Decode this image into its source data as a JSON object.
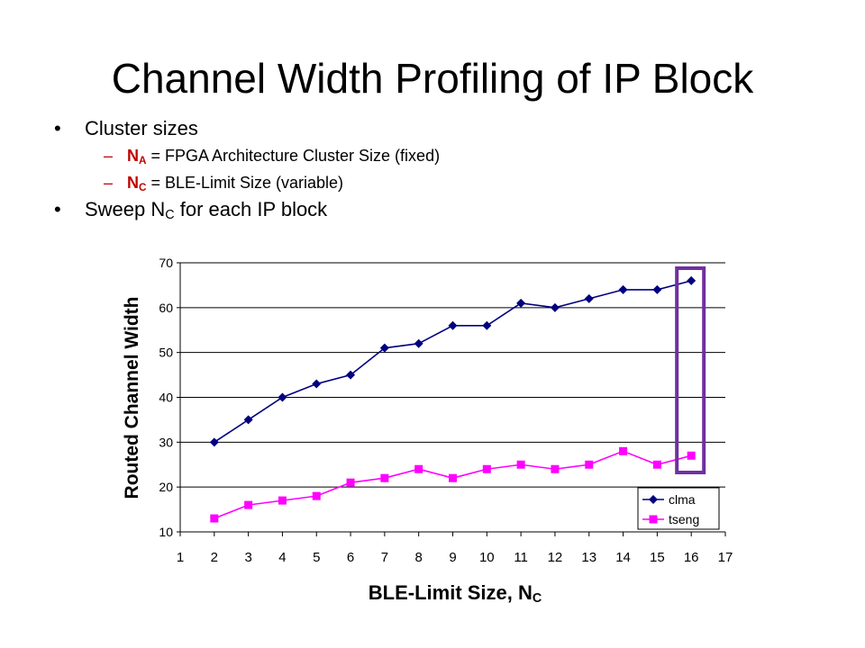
{
  "slide": {
    "title": "Channel Width Profiling of IP Block",
    "bullets": {
      "b1": "Cluster sizes",
      "s1_sym": "N",
      "s1_sub": "A",
      "s1_rest": " = FPGA Architecture Cluster Size (fixed)",
      "s2_sym": "N",
      "s2_sub": "C",
      "s2_rest": " = BLE-Limit Size (variable)",
      "b2_pre": "Sweep N",
      "b2_sub": "C",
      "b2_post": " for each IP block",
      "bullet_glyph": "•",
      "dash_glyph": "–"
    }
  },
  "chart_data": {
    "type": "line",
    "xlabel": "BLE-Limit Size, N",
    "xlabel_sub": "C",
    "ylabel": "Routed Channel Width",
    "x": [
      2,
      3,
      4,
      5,
      6,
      7,
      8,
      9,
      10,
      11,
      12,
      13,
      14,
      15,
      16
    ],
    "xlim": [
      1,
      17
    ],
    "xticks": [
      1,
      2,
      3,
      4,
      5,
      6,
      7,
      8,
      9,
      10,
      11,
      12,
      13,
      14,
      15,
      16,
      17
    ],
    "ylim": [
      10,
      70
    ],
    "yticks": [
      10,
      20,
      30,
      40,
      50,
      60,
      70
    ],
    "grid": "horizontal",
    "legend": "bottom-right",
    "series": [
      {
        "name": "clma",
        "color": "#000080",
        "marker": "diamond",
        "values": [
          30,
          35,
          40,
          43,
          45,
          51,
          52,
          56,
          56,
          61,
          60,
          62,
          64,
          64,
          66
        ]
      },
      {
        "name": "tseng",
        "color": "#ff00ff",
        "marker": "square",
        "values": [
          13,
          16,
          17,
          18,
          21,
          22,
          24,
          22,
          24,
          25,
          24,
          25,
          28,
          25,
          27
        ]
      }
    ],
    "highlight": {
      "x": 16,
      "color": "#7030a0"
    }
  }
}
